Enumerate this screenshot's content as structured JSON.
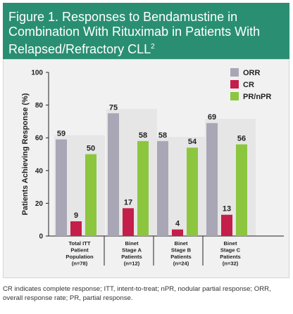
{
  "figure": {
    "title_main": "Figure 1. Responses to Bendamustine in Combination With Rituximab in Patients With Relapsed/Refractory CLL",
    "title_superscript": "2"
  },
  "caption": "CR indicates complete response; ITT, intent-to-treat; nPR, nodular partial response; ORR, overall response rate; PR, partial response.",
  "colors": {
    "header_bg": "#2a8f72",
    "ORR": "#a9a7b6",
    "CR": "#c41e4a",
    "PR/nPR": "#8cc63f",
    "panel_bg": "#f1f1f1"
  },
  "chart_data": {
    "type": "bar",
    "ylabel": "Patients Achieving Response (%)",
    "xlabel": "",
    "ylim": [
      0,
      100
    ],
    "yticks": [
      0,
      20,
      40,
      60,
      80,
      100
    ],
    "legend_position": "top-right",
    "categories": [
      [
        "Total ITT",
        "Patient",
        "Population",
        "(n=78)"
      ],
      [
        "Binet",
        "Stage A",
        "Patients",
        "(n=12)"
      ],
      [
        "Binet",
        "Stage B",
        "Patients",
        "(n=24)"
      ],
      [
        "Binet",
        "Stage C",
        "Patients",
        "(n=32)"
      ]
    ],
    "series": [
      {
        "name": "ORR",
        "values": [
          59,
          75,
          58,
          69
        ]
      },
      {
        "name": "CR",
        "values": [
          9,
          17,
          4,
          13
        ]
      },
      {
        "name": "PR/nPR",
        "values": [
          50,
          58,
          54,
          56
        ]
      }
    ]
  }
}
